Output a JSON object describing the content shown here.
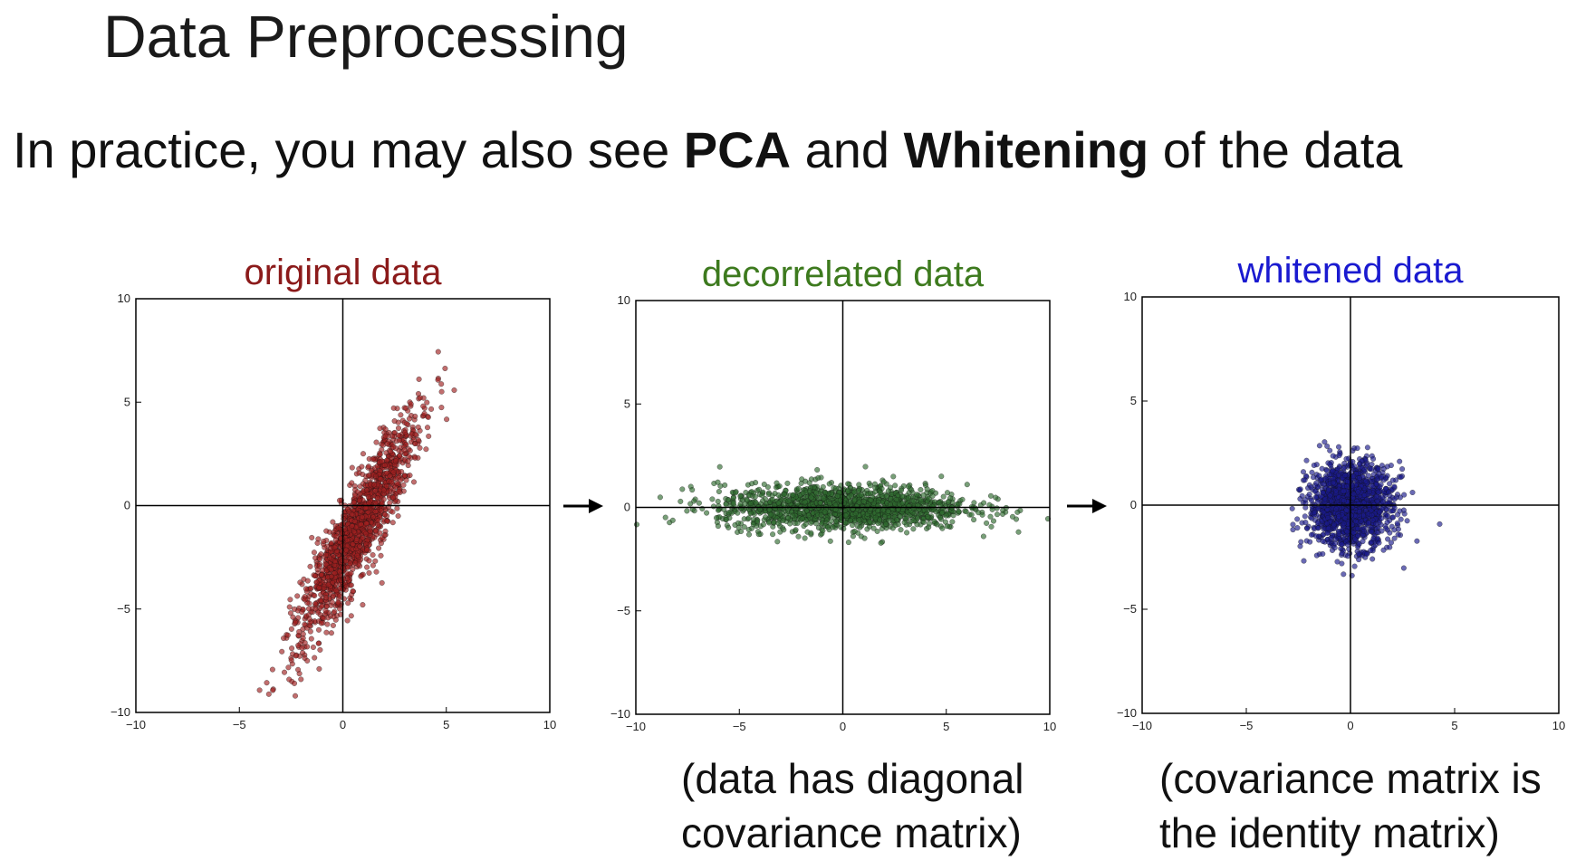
{
  "slide": {
    "title": "Data Preprocessing",
    "subtitle": {
      "part1": "In practice, you may also see ",
      "pca": "PCA",
      "part2": " and ",
      "whitening": "Whitening",
      "part3": " of the data"
    }
  },
  "captions": {
    "decorrelated_line1": "(data has diagonal",
    "decorrelated_line2": "covariance matrix)",
    "whitened_line1": "(covariance matrix is",
    "whitened_line2": "the identity matrix)"
  },
  "chart_data": [
    {
      "type": "scatter",
      "title": "original data",
      "title_color": "#8b1a1a",
      "point_color": "#a02020",
      "xlim": [
        -10,
        10
      ],
      "ylim": [
        -10,
        10
      ],
      "xticks": [
        -10,
        -5,
        0,
        5,
        10
      ],
      "yticks": [
        -10,
        -5,
        0,
        5,
        10
      ],
      "distribution": {
        "mean": [
          0.7,
          -1.2
        ],
        "principal_axis_angle_deg": 63,
        "sd_major": 3.0,
        "sd_minor": 0.55,
        "n_points": 1500
      },
      "axes_lines_at_origin": true
    },
    {
      "type": "scatter",
      "title": "decorrelated data",
      "title_color": "#3d7a1e",
      "point_color": "#2f6b2f",
      "xlim": [
        -10,
        10
      ],
      "ylim": [
        -10,
        10
      ],
      "xticks": [
        -10,
        -5,
        0,
        5,
        10
      ],
      "yticks": [
        -10,
        -5,
        0,
        5,
        10
      ],
      "distribution": {
        "mean": [
          0,
          0
        ],
        "principal_axis_angle_deg": 0,
        "sd_major": 3.0,
        "sd_minor": 0.55,
        "n_points": 1500
      },
      "axes_lines_at_origin": true
    },
    {
      "type": "scatter",
      "title": "whitened data",
      "title_color": "#1a1ad0",
      "point_color": "#1a1a8c",
      "xlim": [
        -10,
        10
      ],
      "ylim": [
        -10,
        10
      ],
      "xticks": [
        -10,
        -5,
        0,
        5,
        10
      ],
      "yticks": [
        -10,
        -5,
        0,
        5,
        10
      ],
      "distribution": {
        "mean": [
          0,
          0
        ],
        "principal_axis_angle_deg": 0,
        "sd_major": 1.0,
        "sd_minor": 1.0,
        "n_points": 1500
      },
      "axes_lines_at_origin": true
    }
  ]
}
